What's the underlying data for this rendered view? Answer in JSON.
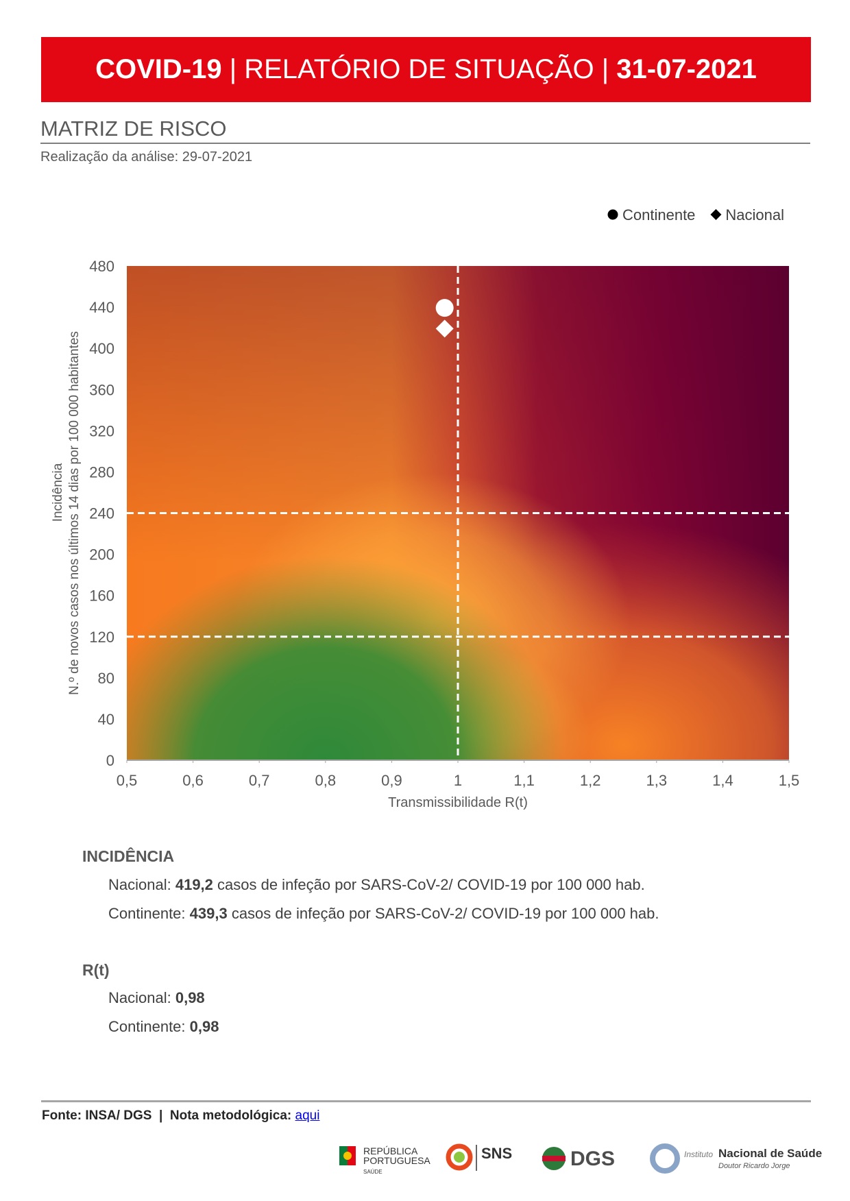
{
  "header": {
    "title_bold_left": "COVID-19",
    "title_middle": " | RELATÓRIO DE SITUAÇÃO | ",
    "title_bold_right": "31-07-2021"
  },
  "section": {
    "title": "MATRIZ DE RISCO",
    "subtitle": "Realização da análise: 29-07-2021"
  },
  "chart_data": {
    "type": "scatter",
    "x_label": "Transmissibilidade R(t)",
    "y_label": [
      "Incidência",
      "N.º de novos casos nos últimos 14 dias por 100 000 habitantes"
    ],
    "xlim": [
      0.5,
      1.5
    ],
    "xticks": [
      {
        "value": 0.5,
        "label": "0,5"
      },
      {
        "value": 0.6,
        "label": "0,6"
      },
      {
        "value": 0.7,
        "label": "0,7"
      },
      {
        "value": 0.8,
        "label": "0,8"
      },
      {
        "value": 0.9,
        "label": "0,9"
      },
      1,
      {
        "value": 1.1,
        "label": "1,1"
      },
      {
        "value": 1.2,
        "label": "1,2"
      },
      {
        "value": 1.3,
        "label": "1,3"
      },
      {
        "value": 1.4,
        "label": "1,4"
      },
      {
        "value": 1.5,
        "label": "1,5"
      }
    ],
    "ylim": [
      0,
      480
    ],
    "yticks": [
      0,
      40,
      80,
      120,
      160,
      200,
      240,
      280,
      320,
      360,
      400,
      440,
      480
    ],
    "thresholds": {
      "x": [
        1
      ],
      "y": [
        120,
        240
      ]
    },
    "series": [
      {
        "name": "Continente",
        "marker": "circle",
        "color": "#ffffff",
        "x": [
          0.98
        ],
        "values": [
          439.3
        ]
      },
      {
        "name": "Nacional",
        "marker": "diamond",
        "color": "#ffffff",
        "x": [
          0.98
        ],
        "values": [
          419.2
        ]
      }
    ],
    "legend": "top-right"
  },
  "incidencia": {
    "title": "INCIDÊNCIA",
    "lines": [
      {
        "label": "Nacional: ",
        "value": "419,2",
        "text": " casos de infeção por SARS-CoV-2/ COVID-19 por 100 000 hab."
      },
      {
        "label": "Continente: ",
        "value": "439,3",
        "text": " casos de infeção por SARS-CoV-2/ COVID-19 por 100 000 hab."
      }
    ]
  },
  "rt": {
    "title": "R(t)",
    "lines": [
      {
        "label": "Nacional: ",
        "value": "0,98"
      },
      {
        "label": "Continente: ",
        "value": "0,98"
      }
    ]
  },
  "footer": {
    "source": "Fonte: INSA/ DGS",
    "separator": "|",
    "note": "Nota metodológica:",
    "link": "aqui"
  },
  "logos": {
    "republica": [
      "REPÚBLICA",
      "PORTUGUESA",
      "SAÚDE"
    ],
    "sns": "SNS",
    "dgs": "DGS",
    "insa_prefix": "Instituto",
    "insa_name": "Nacional de Saúde",
    "insa_sub": "Doutor Ricardo Jorge"
  }
}
